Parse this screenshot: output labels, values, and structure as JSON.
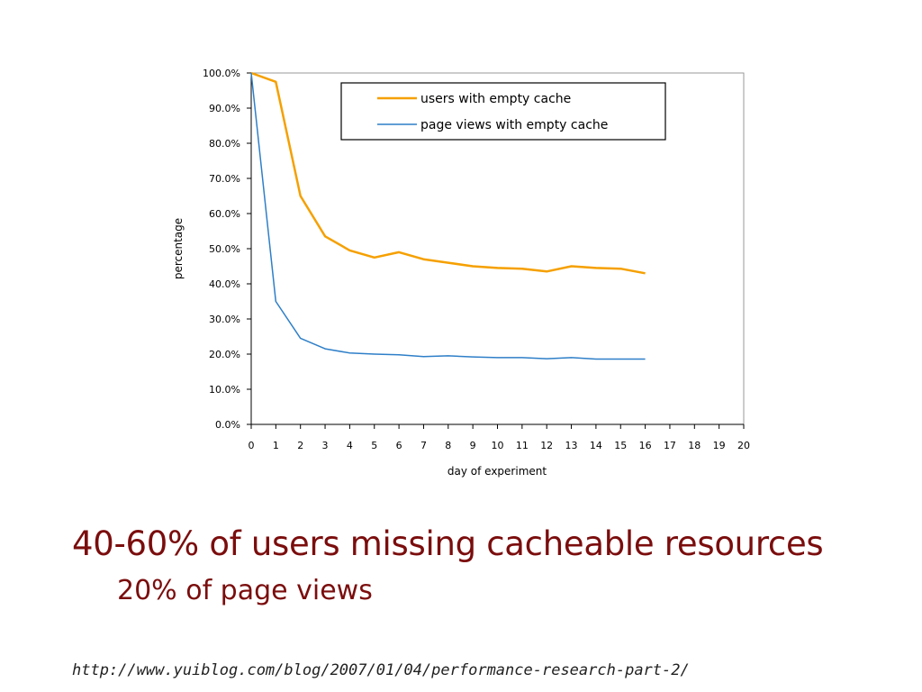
{
  "chart_data": {
    "type": "line",
    "xlabel": "day of experiment",
    "ylabel": "percentage",
    "xlim": [
      0,
      20
    ],
    "ylim": [
      0,
      100
    ],
    "x_ticks": [
      "0",
      "1",
      "2",
      "3",
      "4",
      "5",
      "6",
      "7",
      "8",
      "9",
      "10",
      "11",
      "12",
      "13",
      "14",
      "15",
      "16",
      "17",
      "18",
      "19",
      "20"
    ],
    "y_ticks": [
      "0.0%",
      "10.0%",
      "20.0%",
      "30.0%",
      "40.0%",
      "50.0%",
      "60.0%",
      "70.0%",
      "80.0%",
      "90.0%",
      "100.0%"
    ],
    "legend_position": "top-right",
    "grid": false,
    "series": [
      {
        "name": "users with empty cache",
        "color": "#f5a000",
        "x": [
          0,
          1,
          2,
          3,
          4,
          5,
          6,
          7,
          8,
          9,
          10,
          11,
          12,
          13,
          14,
          15,
          16
        ],
        "values": [
          100,
          97.5,
          65,
          53.5,
          49.5,
          47.5,
          49,
          47,
          46,
          45,
          44.5,
          44.3,
          43.5,
          45,
          44.5,
          44.3,
          43
        ]
      },
      {
        "name": "page views with empty cache",
        "color": "#2e7fc8",
        "x": [
          0,
          1,
          2,
          3,
          4,
          5,
          6,
          7,
          8,
          9,
          10,
          11,
          12,
          13,
          14,
          15,
          16
        ],
        "values": [
          100,
          35,
          24.5,
          21.5,
          20.3,
          20,
          19.8,
          19.3,
          19.5,
          19.2,
          19,
          19,
          18.7,
          19,
          18.6,
          18.6,
          18.6
        ]
      }
    ]
  },
  "slide": {
    "headline": "40-60% of users missing cacheable resources",
    "subline": "20% of page views",
    "source_url": "http://www.yuiblog.com/blog/2007/01/04/performance-research-part-2/"
  }
}
